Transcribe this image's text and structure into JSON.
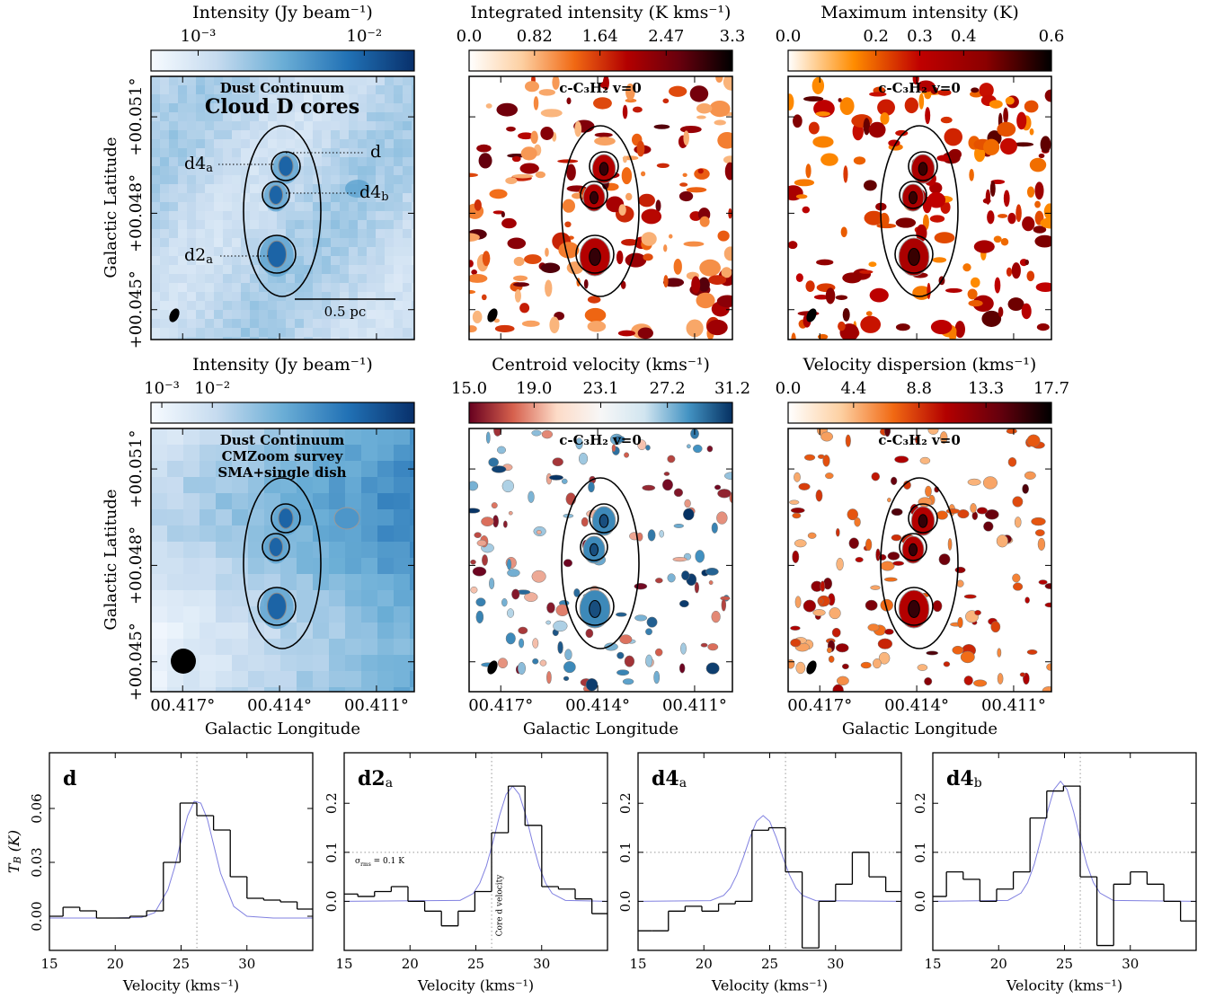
{
  "maps": [
    {
      "kind": "continuum",
      "colorbar": {
        "label": "Intensity (Jy beam⁻¹)",
        "scale": "log",
        "lim": [
          0.00052,
          0.02
        ],
        "ticks": [
          {
            "value": 0.001,
            "label": "10⁻³"
          },
          {
            "value": 0.01,
            "label": "10⁻²"
          }
        ],
        "colormap": [
          "#f7fbff",
          "#c6dbef",
          "#6baed6",
          "#2171b5",
          "#08306b"
        ]
      },
      "annotations": [
        "Dust Continuum",
        "Cloud D cores"
      ],
      "core_labels": [
        {
          "text": "d4",
          "sub": "a"
        },
        {
          "text": "d"
        },
        {
          "text": "d4",
          "sub": "b"
        },
        {
          "text": "d2",
          "sub": "a"
        }
      ],
      "scale_bar": "0.5 pc"
    },
    {
      "kind": "line",
      "colorbar": {
        "label": "Integrated intensity (K kms⁻¹)",
        "scale": "linear",
        "lim": [
          0,
          3.3
        ],
        "ticks": [
          {
            "value": 0,
            "label": "0.0"
          },
          0.82,
          1.64,
          2.47,
          3.3
        ],
        "colormap": [
          "#ffffff",
          "#fdd0a2",
          "#f16913",
          "#b30000",
          "#67000d",
          "#000000"
        ]
      },
      "annotations": [
        "c-C₃H₂ v=0"
      ]
    },
    {
      "kind": "line",
      "colorbar": {
        "label": "Maximum intensity (K)",
        "scale": "linear",
        "lim": [
          0,
          0.6
        ],
        "ticks": [
          {
            "value": 0,
            "label": "0.0"
          },
          0.2,
          0.3,
          0.4,
          0.6
        ],
        "colormap": [
          "#ffffff",
          "#ff8c00",
          "#c00000",
          "#8b0000",
          "#000000"
        ]
      },
      "annotations": [
        "c-C₃H₂ v=0"
      ]
    },
    {
      "kind": "continuum",
      "colorbar": {
        "label": "Intensity (Jy beam⁻¹)",
        "scale": "log",
        "lim": [
          0.00061,
          100
        ],
        "ticks": [
          {
            "value": 0.001,
            "label": "10⁻³"
          },
          {
            "value": 0.01,
            "label": "10⁻²"
          }
        ],
        "colormap": [
          "#f7fbff",
          "#c6dbef",
          "#6baed6",
          "#2171b5",
          "#08306b"
        ]
      },
      "annotations": [
        "Dust Continuum",
        "CMZoom survey",
        "SMA+single dish"
      ]
    },
    {
      "kind": "line",
      "colorbar": {
        "label": "Centroid velocity (kms⁻¹)",
        "scale": "linear",
        "lim": [
          15,
          31.2
        ],
        "ticks": [
          {
            "value": 15,
            "label": "15.0"
          },
          {
            "value": 19,
            "label": "19.0"
          },
          23.1,
          27.2,
          31.2
        ],
        "colormap": [
          "#67001f",
          "#d6604d",
          "#fddbc7",
          "#f7f7f7",
          "#d1e5f0",
          "#4393c3",
          "#053061"
        ]
      },
      "annotations": [
        "c-C₃H₂ v=0"
      ]
    },
    {
      "kind": "line",
      "colorbar": {
        "label": "Velocity dispersion (kms⁻¹)",
        "scale": "linear",
        "lim": [
          0,
          17.7
        ],
        "ticks": [
          {
            "value": 0,
            "label": "0.0"
          },
          4.4,
          8.8,
          13.3,
          17.7
        ],
        "colormap": [
          "#ffffff",
          "#fdd0a2",
          "#f16913",
          "#b30000",
          "#67000d",
          "#000000"
        ]
      },
      "annotations": [
        "c-C₃H₂ v=0"
      ]
    }
  ],
  "map_axes": {
    "xlabel": "Galactic Longitude",
    "ylabel": "Galactic Latitude",
    "xlim": [
      0.41798,
      0.40983
    ],
    "xticks": [
      {
        "value": 0.417,
        "label": "00.417°"
      },
      {
        "value": 0.414,
        "label": "00.414°"
      },
      {
        "value": 0.411,
        "label": "00.411°"
      }
    ],
    "ylim": [
      0.04407,
      0.05226
    ],
    "yticks": [
      {
        "value": 0.045,
        "label": "+00.045°"
      },
      {
        "value": 0.048,
        "label": "+00.048°"
      },
      {
        "value": 0.051,
        "label": "+00.051°"
      }
    ]
  },
  "spectra": {
    "type": "step",
    "xlabel": "Velocity (kms⁻¹)",
    "ylabel": {
      "text": "T",
      "sub": "B",
      "after": " (K)"
    },
    "xlim": [
      15,
      35
    ],
    "xticks": [
      15,
      20,
      25,
      30
    ],
    "core_velocity": 26.2,
    "core_velocity_label": "Core d velocity",
    "rms": 0.1,
    "rms_label": {
      "text": "σ",
      "sub": "rms",
      "after": " = 0.1 K"
    },
    "channels": [
      15.4,
      16.67,
      17.94,
      19.21,
      20.48,
      21.75,
      23.02,
      24.29,
      25.56,
      26.83,
      28.1,
      29.37,
      30.64,
      31.91,
      33.18,
      34.45
    ],
    "panels": [
      {
        "label": {
          "text": "d"
        },
        "ylim": [
          -0.019,
          0.091
        ],
        "yticks": [
          {
            "value": 0,
            "label": "0.00"
          },
          0.03,
          0.06
        ],
        "show_rms": false,
        "values": [
          0.0,
          0.005,
          0.003,
          -0.001,
          -0.001,
          0.0,
          0.003,
          0.03,
          0.063,
          0.056,
          0.048,
          0.022,
          0.01,
          0.009,
          0.008,
          0.004
        ],
        "fit": {
          "x": [
            15,
            20,
            22,
            23,
            24,
            24.5,
            25,
            25.5,
            26,
            26.5,
            27,
            27.5,
            28,
            29,
            30,
            32,
            35
          ],
          "values": [
            -0.001,
            -0.001,
            -0.0006,
            0.002,
            0.0148,
            0.027,
            0.042,
            0.056,
            0.064,
            0.063,
            0.054,
            0.039,
            0.024,
            0.0055,
            0.0,
            -0.001,
            -0.001
          ]
        }
      },
      {
        "label": {
          "text": "d2",
          "sub": "a"
        },
        "ylim": [
          -0.1,
          0.303
        ],
        "yticks": [
          {
            "value": 0,
            "label": "0.0"
          },
          0.1,
          0.2
        ],
        "show_rms": true,
        "values": [
          0.015,
          0.01,
          0.02,
          0.03,
          0.0,
          -0.02,
          -0.05,
          -0.02,
          0.02,
          0.14,
          0.235,
          0.155,
          0.03,
          0.025,
          0.005,
          -0.025
        ],
        "fit": {
          "x": [
            15,
            23.8,
            24.8,
            25.3,
            25.8,
            26.3,
            26.8,
            27.3,
            27.8,
            28.3,
            28.8,
            29.3,
            29.8,
            30.3,
            30.8,
            31.8,
            35
          ],
          "values": [
            0,
            0.002,
            0.016,
            0.037,
            0.072,
            0.121,
            0.175,
            0.218,
            0.235,
            0.218,
            0.175,
            0.121,
            0.072,
            0.037,
            0.016,
            0.002,
            0
          ]
        }
      },
      {
        "label": {
          "text": "d4",
          "sub": "a"
        },
        "ylim": [
          -0.1,
          0.303
        ],
        "yticks": [
          {
            "value": 0,
            "label": "0.0"
          },
          0.1,
          0.2
        ],
        "show_rms": true,
        "values": [
          -0.06,
          -0.06,
          -0.02,
          -0.01,
          -0.02,
          -0.005,
          0.0,
          0.145,
          0.15,
          0.06,
          -0.095,
          0.0,
          0.035,
          0.1,
          0.05,
          0.02
        ],
        "fit": {
          "x": [
            15,
            20.5,
            21.5,
            22,
            22.5,
            23,
            23.5,
            24,
            24.5,
            25,
            25.5,
            26,
            26.5,
            27,
            27.5,
            28.5,
            35
          ],
          "values": [
            0,
            0.0015,
            0.012,
            0.027,
            0.054,
            0.09,
            0.13,
            0.163,
            0.175,
            0.163,
            0.13,
            0.09,
            0.054,
            0.027,
            0.012,
            0.0015,
            0
          ]
        }
      },
      {
        "label": {
          "text": "d4",
          "sub": "b"
        },
        "ylim": [
          -0.1,
          0.303
        ],
        "yticks": [
          {
            "value": 0,
            "label": "0.0"
          },
          0.1,
          0.2
        ],
        "show_rms": true,
        "values": [
          0.01,
          0.06,
          0.045,
          0.0,
          0.025,
          0.06,
          0.17,
          0.225,
          0.235,
          0.05,
          -0.09,
          0.035,
          0.06,
          0.035,
          0.0,
          -0.04
        ],
        "fit": {
          "x": [
            15,
            20.7,
            21.7,
            22.2,
            22.7,
            23.2,
            23.7,
            24.2,
            24.7,
            25.2,
            25.7,
            26.2,
            26.7,
            27.2,
            27.7,
            28.7,
            35
          ],
          "values": [
            0,
            0.002,
            0.017,
            0.038,
            0.075,
            0.126,
            0.182,
            0.228,
            0.245,
            0.228,
            0.182,
            0.126,
            0.075,
            0.038,
            0.017,
            0.002,
            0
          ]
        }
      }
    ]
  }
}
